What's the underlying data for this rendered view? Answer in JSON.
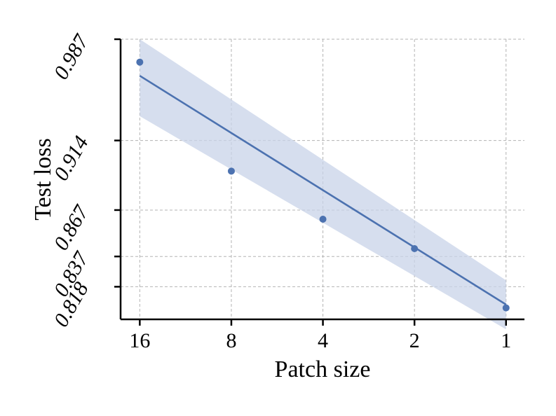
{
  "chart_data": {
    "type": "scatter",
    "xlabel": "Patch size",
    "ylabel": "Test loss",
    "x_scale": "log2",
    "x_reversed": true,
    "x_ticks": [
      16,
      8,
      4,
      2,
      1
    ],
    "x_tick_labels": [
      "16",
      "8",
      "4",
      "2",
      "1"
    ],
    "y_scale": "log",
    "y_ticks": [
      0.818,
      0.837,
      0.867,
      0.914,
      0.987
    ],
    "y_tick_labels": [
      "0.818",
      "0.837",
      "0.867",
      "0.914",
      "0.987"
    ],
    "xlim": [
      18.5,
      0.87
    ],
    "ylim": [
      0.798,
      0.987
    ],
    "grid": true,
    "series": [
      {
        "points": [
          {
            "x": 16,
            "y": 0.97
          },
          {
            "x": 8,
            "y": 0.893
          },
          {
            "x": 4,
            "y": 0.861
          },
          {
            "x": 2,
            "y": 0.842
          },
          {
            "x": 1,
            "y": 0.805
          }
        ],
        "color": "#4c72b0"
      }
    ],
    "fit": {
      "kind": "linear-regression",
      "line": [
        {
          "x": 16,
          "y": 0.96
        },
        {
          "x": 1,
          "y": 0.807
        }
      ],
      "ci_upper": [
        {
          "x": 16,
          "y": 0.987
        },
        {
          "x": 1,
          "y": 0.822
        }
      ],
      "ci_lower": [
        {
          "x": 16,
          "y": 0.931
        },
        {
          "x": 1,
          "y": 0.792
        }
      ],
      "color": "#4c72b0",
      "band_color": "#c8d3e8"
    }
  }
}
